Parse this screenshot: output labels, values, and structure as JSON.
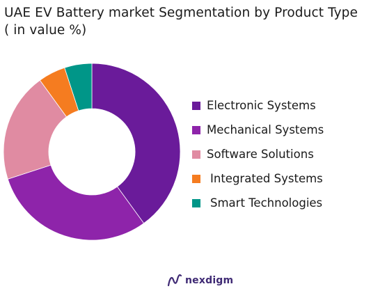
{
  "header": {
    "title_line1": "UAE EV Battery market Segmentation by Product Type",
    "title_line2": "( in value %)"
  },
  "chart_data": {
    "type": "pie",
    "donut": true,
    "title": "UAE EV Battery market Segmentation by Product Type ( in value %)",
    "legend_position": "right",
    "labels": [
      "Electronic Systems",
      "Mechanical Systems",
      "Software Solutions",
      "Integrated Systems",
      "Smart Technologies"
    ],
    "values": [
      40,
      30,
      20,
      5,
      5
    ],
    "colors": [
      "#6a1b9a",
      "#8e24aa",
      "#e08ba2",
      "#f57c20",
      "#009688"
    ]
  },
  "legend": {
    "items": [
      {
        "label": "Electronic Systems",
        "color": "#6a1b9a"
      },
      {
        "label": "Mechanical Systems",
        "color": "#8e24aa"
      },
      {
        "label": "Software Solutions",
        "color": "#e08ba2"
      },
      {
        "label": "Integrated Systems",
        "color": "#f57c20"
      },
      {
        "label": "Smart Technologies",
        "color": "#009688"
      }
    ]
  },
  "footer": {
    "brand_name": "nexdigm",
    "brand_icon": "nexdigm-logo-icon",
    "brand_color": "#3f2a74"
  }
}
